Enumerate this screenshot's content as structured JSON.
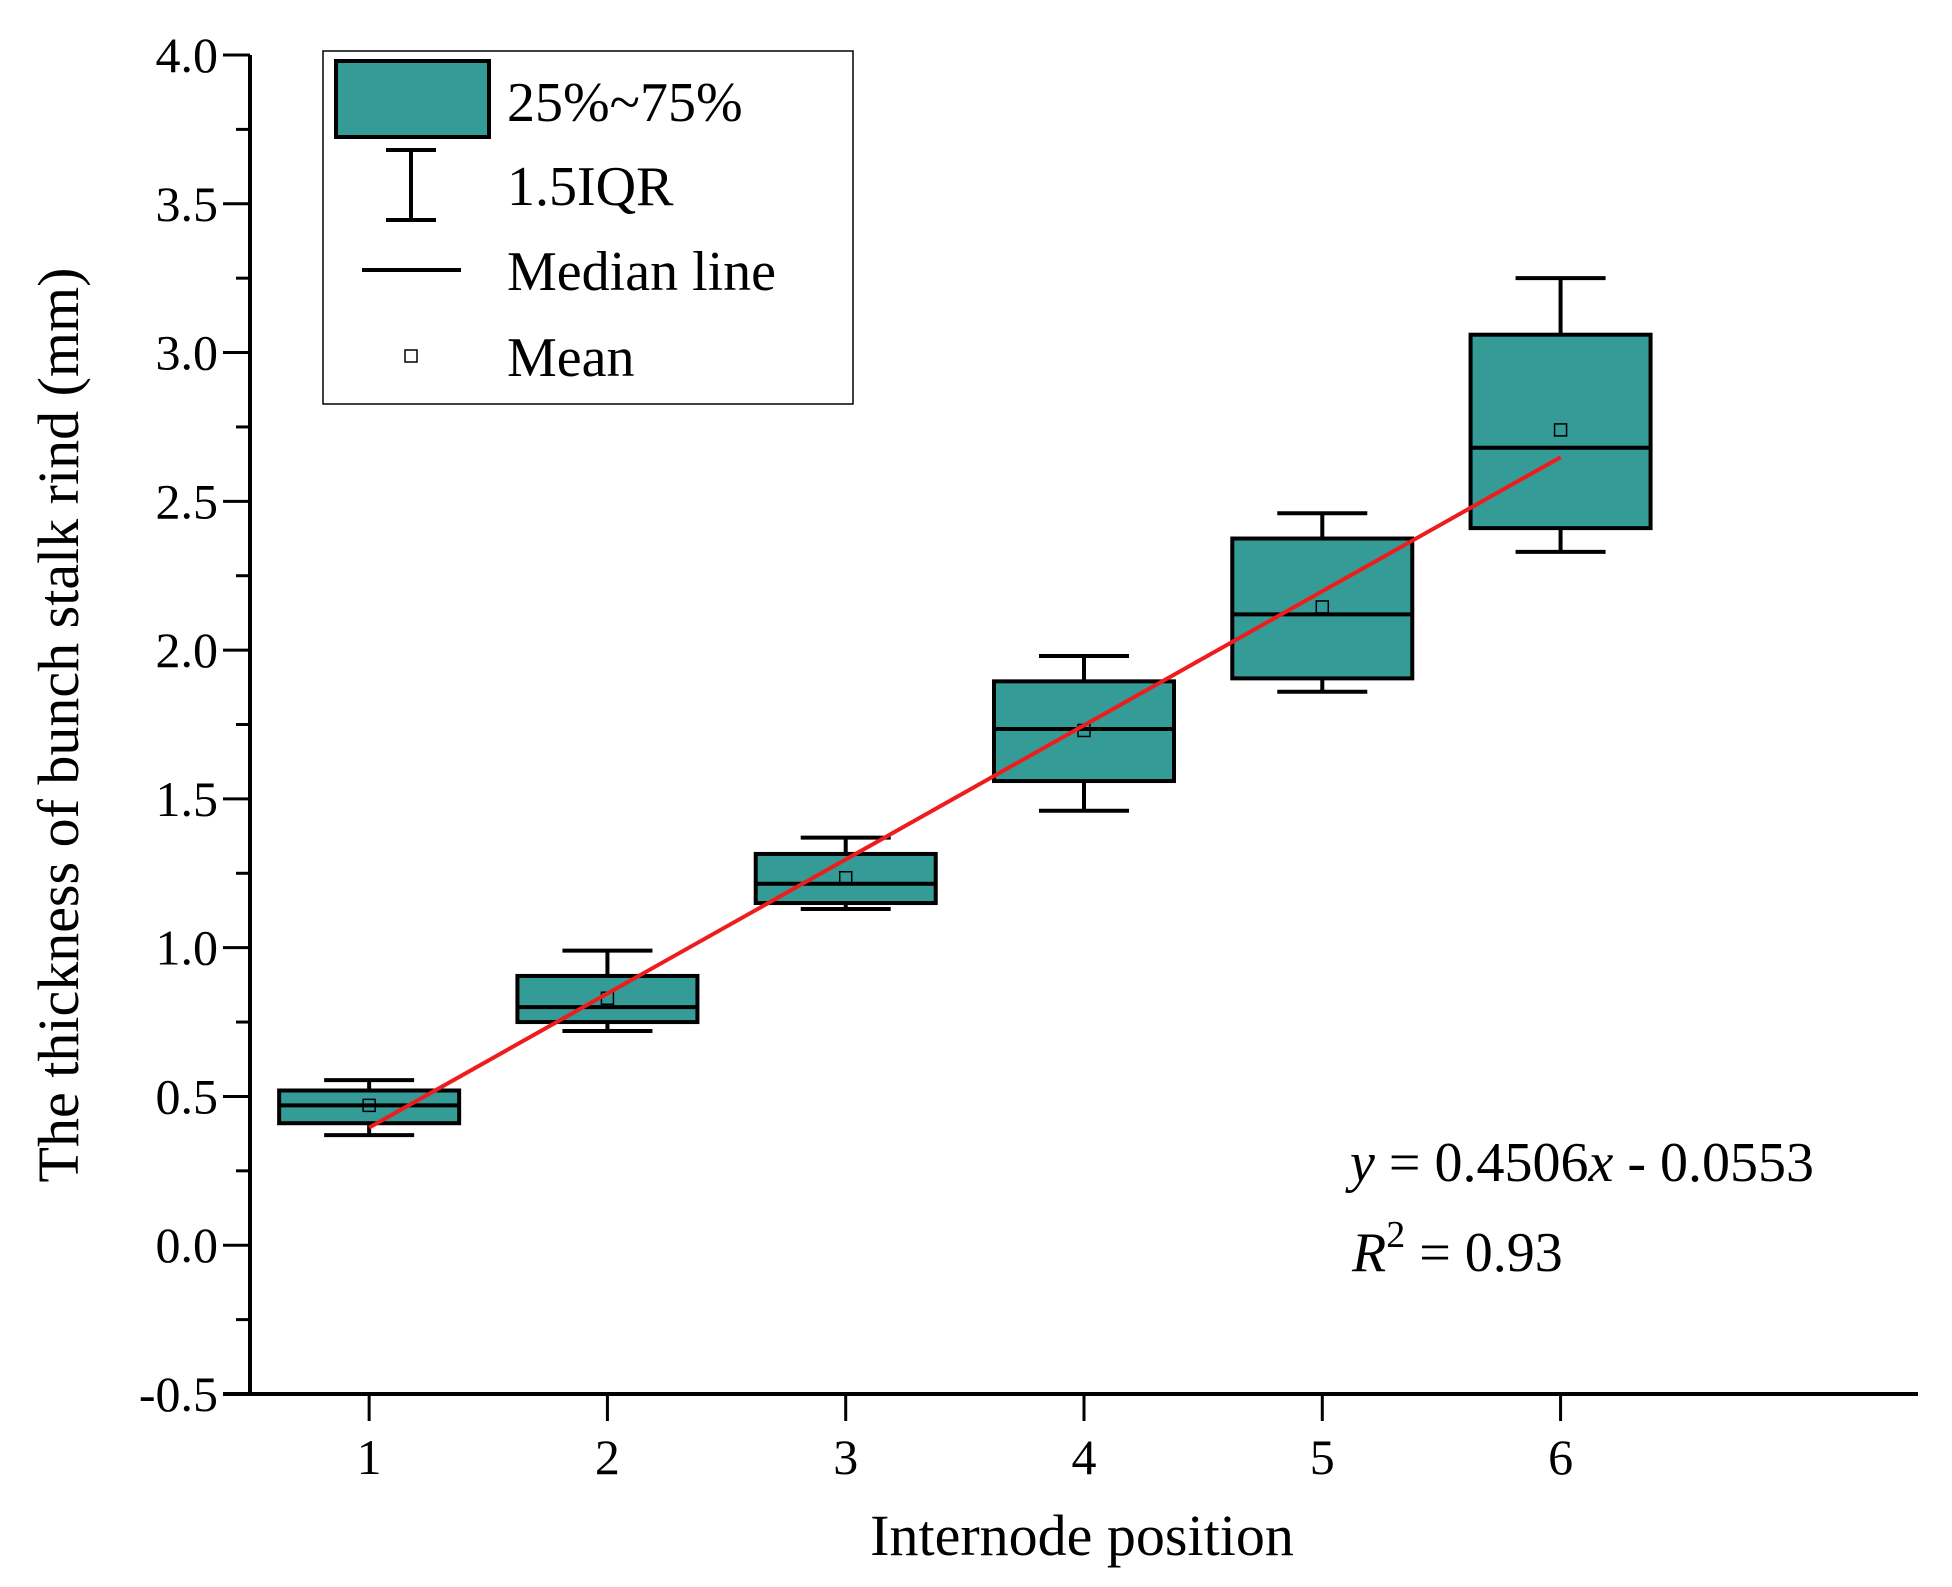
{
  "chart_data": {
    "type": "box",
    "xlabel": "Internode position",
    "ylabel": "The thickness of bunch stalk rind (mm)",
    "ylim": [
      -0.5,
      4.0
    ],
    "xlim": [
      0.5,
      7.5
    ],
    "yticks": [
      -0.5,
      0.0,
      0.5,
      1.0,
      1.5,
      2.0,
      2.5,
      3.0,
      3.5,
      4.0
    ],
    "ytick_labels": [
      "-0.5",
      "0.0",
      "0.5",
      "1.0",
      "1.5",
      "2.0",
      "2.5",
      "3.0",
      "3.5",
      "4.0"
    ],
    "categories": [
      "1",
      "2",
      "3",
      "4",
      "5",
      "6"
    ],
    "boxes": [
      {
        "x": 1,
        "whisker_low": 0.37,
        "q1": 0.41,
        "median": 0.47,
        "q3": 0.52,
        "whisker_high": 0.555,
        "mean": 0.47
      },
      {
        "x": 2,
        "whisker_low": 0.72,
        "q1": 0.75,
        "median": 0.8,
        "q3": 0.905,
        "whisker_high": 0.99,
        "mean": 0.83
      },
      {
        "x": 3,
        "whisker_low": 1.13,
        "q1": 1.15,
        "median": 1.215,
        "q3": 1.315,
        "whisker_high": 1.37,
        "mean": 1.235
      },
      {
        "x": 4,
        "whisker_low": 1.46,
        "q1": 1.56,
        "median": 1.735,
        "q3": 1.895,
        "whisker_high": 1.98,
        "mean": 1.73
      },
      {
        "x": 5,
        "whisker_low": 1.86,
        "q1": 1.905,
        "median": 2.12,
        "q3": 2.375,
        "whisker_high": 2.46,
        "mean": 2.145
      },
      {
        "x": 6,
        "whisker_low": 2.33,
        "q1": 2.41,
        "median": 2.68,
        "q3": 3.06,
        "whisker_high": 3.25,
        "mean": 2.74
      }
    ],
    "fit": {
      "slope": 0.4506,
      "intercept": -0.0553,
      "x_range": [
        1,
        6
      ],
      "color": "#ee1c1c"
    },
    "box_fill": "#359b97",
    "legend": {
      "placement": "top-left",
      "entries": [
        "25%~75%",
        "1.5IQR",
        "Median line",
        "Mean"
      ]
    },
    "annotation": {
      "eq_y": "y",
      "eq_rest": " = 0.4506",
      "eq_x": "x",
      "eq_tail": " - 0.0553",
      "r2_r": "R",
      "r2_sup": "2",
      "r2_rest": " = 0.93"
    }
  }
}
